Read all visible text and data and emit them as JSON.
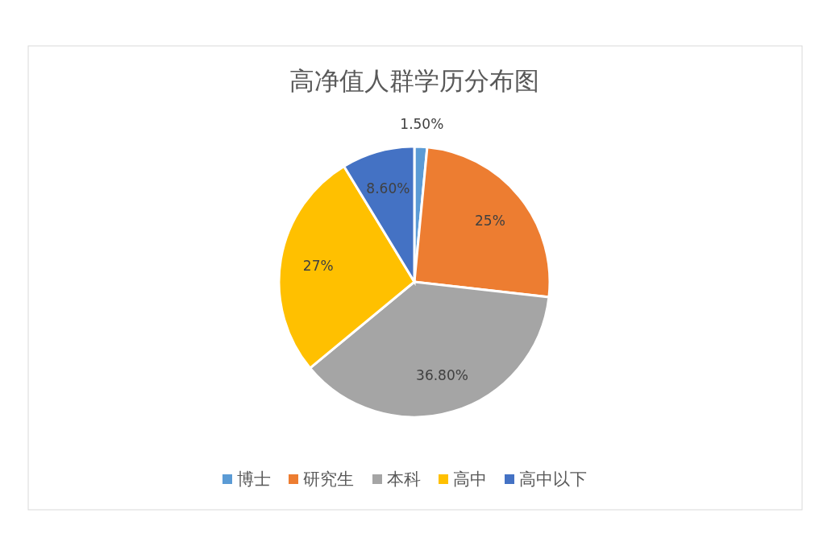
{
  "chart_data": {
    "type": "pie",
    "title": "高净值人群学历分布图",
    "categories": [
      "博士",
      "研究生",
      "本科",
      "高中",
      "高中以下"
    ],
    "values": [
      1.5,
      25,
      36.8,
      27,
      8.6
    ],
    "value_labels": [
      "1.50%",
      "25%",
      "36.80%",
      "27%",
      "8.60%"
    ],
    "colors": [
      "#5b9bd5",
      "#ed7d31",
      "#a5a5a5",
      "#ffc000",
      "#4472c4"
    ],
    "legend": "bottom"
  }
}
